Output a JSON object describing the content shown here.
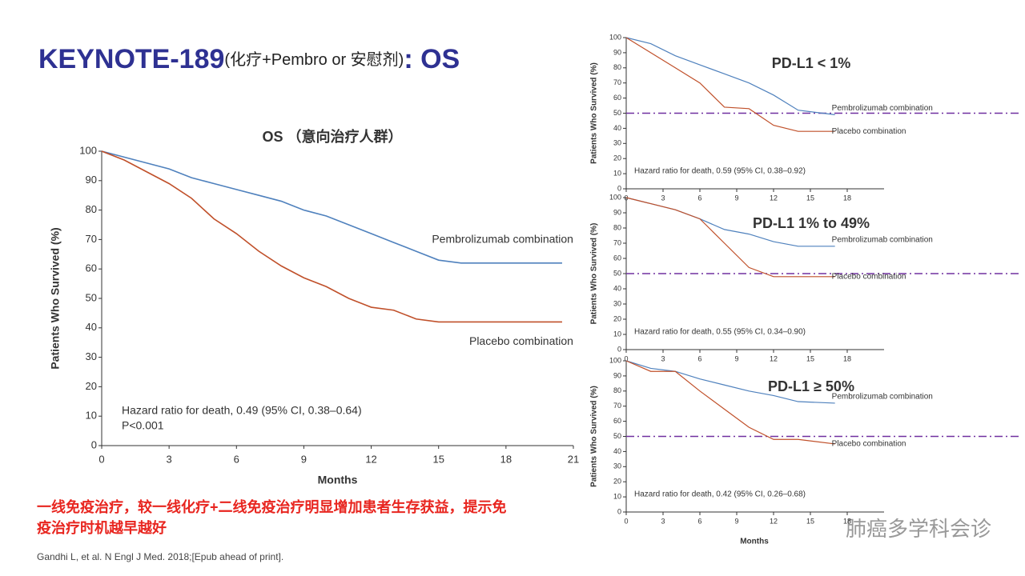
{
  "slide": {
    "title_main": "KEYNOTE-189",
    "title_sub": "(化疗+Pembro or 安慰剂)",
    "title_end": ": OS",
    "conclusion": [
      "一线免疫治疗，较一线化疗+二线免疫治疗明显增加患者生存获益，提示免",
      "疫治疗时机越早越好"
    ],
    "citation": "Gandhi L, et al. N Engl J Med. 2018;[Epub ahead of print].",
    "watermark": "肺癌多学科会诊"
  },
  "chart_data": [
    {
      "type": "line",
      "title": "OS （意向治疗人群）",
      "xlabel": "Months",
      "ylabel": "Patients Who Survived (%)",
      "annotations": [
        "Hazard ratio for death, 0.49 (95% CI, 0.38–0.64)",
        "P<0.001"
      ],
      "x": [
        0,
        1,
        2,
        3,
        4,
        5,
        6,
        7,
        8,
        9,
        10,
        11,
        12,
        13,
        14,
        15,
        16,
        20.5
      ],
      "series": [
        {
          "name": "Pembrolizumab combination",
          "color": "#4f81bd",
          "values": [
            100,
            98,
            96,
            94,
            91,
            89,
            87,
            85,
            83,
            80,
            78,
            75,
            72,
            69,
            66,
            63,
            62,
            62
          ]
        },
        {
          "name": "Placebo combination",
          "color": "#c0502a",
          "values": [
            100,
            97,
            93,
            89,
            84,
            77,
            72,
            66,
            61,
            57,
            54,
            50,
            47,
            46,
            43,
            42,
            42,
            42
          ]
        }
      ],
      "xlim": [
        0,
        21
      ],
      "xticks": [
        0,
        3,
        6,
        9,
        12,
        15,
        18,
        21
      ],
      "ylim": [
        0,
        100
      ],
      "yticks": [
        0,
        10,
        20,
        30,
        40,
        50,
        60,
        70,
        80,
        90,
        100
      ]
    },
    {
      "type": "line",
      "title": "PD-L1 < 1%",
      "ylabel": "Patients Who Survived (%)",
      "annotations": [
        "Hazard ratio for death, 0.59 (95% CI, 0.38–0.92)"
      ],
      "x": [
        0,
        2,
        4,
        6,
        8,
        10,
        12,
        14,
        17
      ],
      "series": [
        {
          "name": "Pembrolizumab combination",
          "color": "#4f81bd",
          "values": [
            100,
            96,
            88,
            82,
            76,
            70,
            62,
            52,
            49
          ]
        },
        {
          "name": "Placebo combination",
          "color": "#c0502a",
          "values": [
            100,
            90,
            80,
            70,
            54,
            53,
            42,
            38,
            38
          ]
        }
      ],
      "hline": 50,
      "hline_color": "#7030a0",
      "xlim": [
        0,
        21
      ],
      "xticks": [
        0,
        3,
        6,
        9,
        12,
        15,
        18
      ],
      "ylim": [
        0,
        100
      ],
      "yticks": [
        0,
        10,
        20,
        30,
        40,
        50,
        60,
        70,
        80,
        90,
        100
      ]
    },
    {
      "type": "line",
      "title": "PD-L1 1% to 49%",
      "ylabel": "Patients Who Survived (%)",
      "annotations": [
        "Hazard ratio for death, 0.55 (95% CI, 0.34–0.90)"
      ],
      "x": [
        0,
        2,
        4,
        6,
        8,
        10,
        12,
        14,
        17
      ],
      "series": [
        {
          "name": "Pembrolizumab combination",
          "color": "#4f81bd",
          "values": [
            100,
            96,
            92,
            86,
            79,
            76,
            71,
            68,
            68
          ]
        },
        {
          "name": "Placebo combination",
          "color": "#c0502a",
          "values": [
            100,
            96,
            92,
            86,
            70,
            54,
            48,
            48,
            48
          ]
        }
      ],
      "hline": 50,
      "hline_color": "#7030a0",
      "xlim": [
        0,
        21
      ],
      "xticks": [
        0,
        3,
        6,
        9,
        12,
        15,
        18
      ],
      "ylim": [
        0,
        100
      ],
      "yticks": [
        0,
        10,
        20,
        30,
        40,
        50,
        60,
        70,
        80,
        90,
        100
      ]
    },
    {
      "type": "line",
      "title": "PD-L1 ≥ 50%",
      "xlabel": "Months",
      "ylabel": "Patients Who Survived (%)",
      "annotations": [
        "Hazard ratio for death, 0.42 (95% CI, 0.26–0.68)"
      ],
      "x": [
        0,
        2,
        4,
        6,
        8,
        10,
        12,
        14,
        17
      ],
      "series": [
        {
          "name": "Pembrolizumab combination",
          "color": "#4f81bd",
          "values": [
            100,
            95,
            93,
            88,
            84,
            80,
            77,
            73,
            72
          ]
        },
        {
          "name": "Placebo combination",
          "color": "#c0502a",
          "values": [
            100,
            93,
            93,
            80,
            68,
            56,
            48,
            48,
            45
          ]
        }
      ],
      "hline": 50,
      "hline_color": "#7030a0",
      "xlim": [
        0,
        21
      ],
      "xticks": [
        0,
        3,
        6,
        9,
        12,
        15,
        18
      ],
      "ylim": [
        0,
        100
      ],
      "yticks": [
        0,
        10,
        20,
        30,
        40,
        50,
        60,
        70,
        80,
        90,
        100
      ]
    }
  ]
}
